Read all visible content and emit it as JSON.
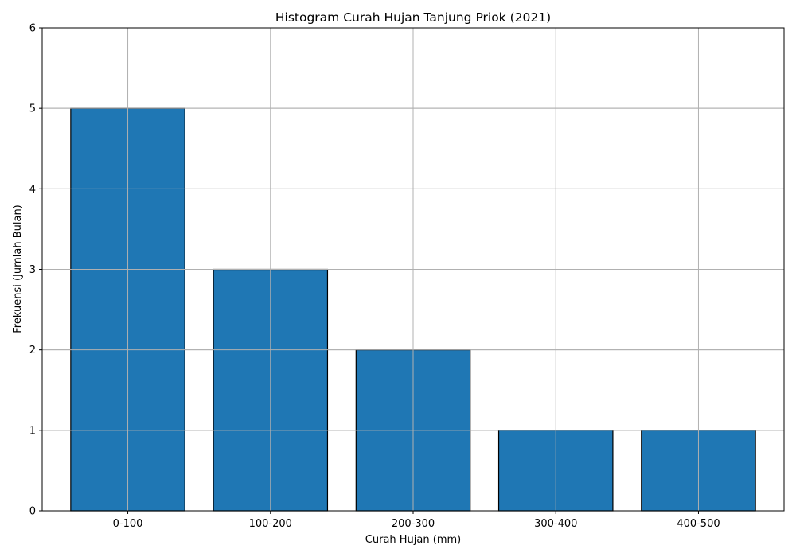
{
  "chart_data": {
    "type": "bar",
    "title": "Histogram Curah Hujan Tanjung Priok (2021)",
    "xlabel": "Curah Hujan (mm)",
    "ylabel": "Frekuensi (Jumlah Bulan)",
    "categories": [
      "0-100",
      "100-200",
      "200-300",
      "300-400",
      "400-500"
    ],
    "values": [
      5,
      3,
      2,
      1,
      1
    ],
    "ylim": [
      0,
      6
    ],
    "yticks": [
      0,
      1,
      2,
      3,
      4,
      5,
      6
    ],
    "grid": true,
    "bar_color": "#1f77b4",
    "edge_color": "#000000",
    "grid_color": "#b0b0b0"
  }
}
